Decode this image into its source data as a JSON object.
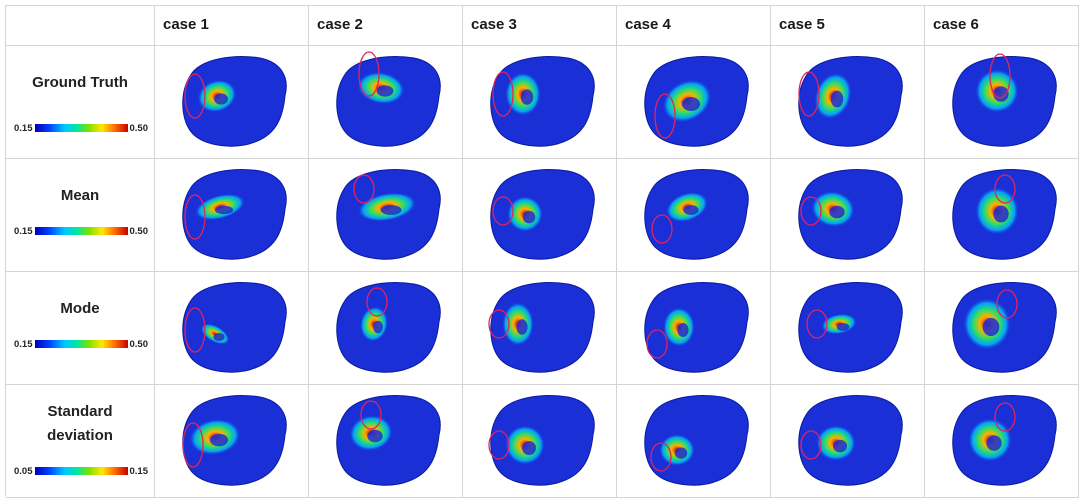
{
  "columns": [
    "case 1",
    "case 2",
    "case 3",
    "case 4",
    "case 5",
    "case 6"
  ],
  "rows": [
    {
      "label": "Ground Truth",
      "scale_min": "0.15",
      "scale_max": "0.50"
    },
    {
      "label": "Mean",
      "scale_min": "0.15",
      "scale_max": "0.50"
    },
    {
      "label": "Mode",
      "scale_min": "0.15",
      "scale_max": "0.50"
    },
    {
      "label": "Standard deviation",
      "label_line1": "Standard",
      "label_line2": "deviation",
      "scale_min": "0.05",
      "scale_max": "0.15"
    }
  ],
  "colors": {
    "mesh_base": "#1a2fd6",
    "highlight_outline": "#e0245e",
    "grid_line": "#d4d4d4"
  }
}
